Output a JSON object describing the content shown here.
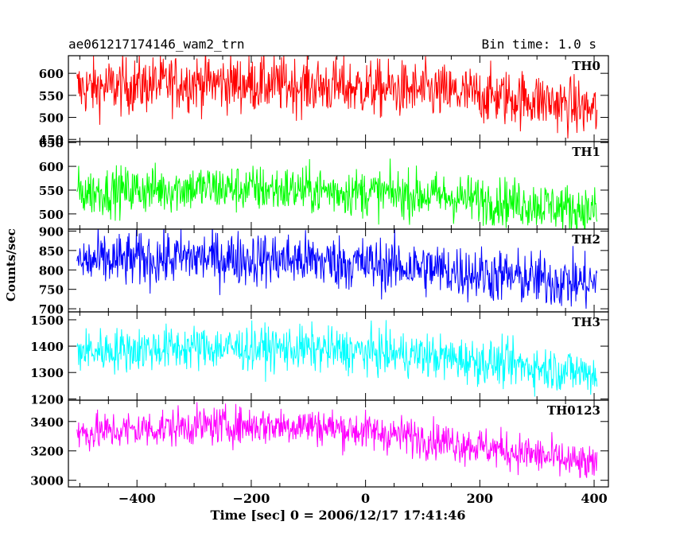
{
  "header": {
    "title": "ae061217174146_wam2_trn",
    "bin_time": "Bin time: 1.0 s"
  },
  "chart_data": {
    "type": "line",
    "ylabel": "Counts/sec",
    "xlabel": "Time [sec] 0 = 2006/12/17 17:41:46",
    "xlim": [
      -520,
      425
    ],
    "x_ticks": [
      -400,
      -200,
      0,
      200,
      400
    ],
    "x_tick_labels": [
      "−400",
      "−200",
      "0",
      "200",
      "400"
    ],
    "x_range_data": [
      -505,
      405
    ],
    "panels": [
      {
        "name": "TH0",
        "color": "#ff0000",
        "ylim": [
          445,
          640
        ],
        "y_ticks": [
          450,
          500,
          550,
          600
        ],
        "y_tick_labels": [
          "450",
          "500",
          "550",
          "600"
        ],
        "trend": [
          [
            -505,
            565
          ],
          [
            -300,
            580
          ],
          [
            -100,
            572
          ],
          [
            100,
            560
          ],
          [
            300,
            540
          ],
          [
            405,
            515
          ]
        ],
        "noise": 32
      },
      {
        "name": "TH1",
        "color": "#00ff00",
        "ylim": [
          468,
          652
        ],
        "y_ticks": [
          500,
          550,
          600,
          650
        ],
        "y_tick_labels": [
          "500",
          "550",
          "600",
          "650"
        ],
        "trend": [
          [
            -505,
            545
          ],
          [
            -300,
            555
          ],
          [
            -100,
            550
          ],
          [
            100,
            540
          ],
          [
            300,
            520
          ],
          [
            405,
            505
          ]
        ],
        "noise": 25
      },
      {
        "name": "TH2",
        "color": "#0000ff",
        "ylim": [
          692,
          905
        ],
        "y_ticks": [
          700,
          750,
          800,
          850,
          900
        ],
        "y_tick_labels": [
          "700",
          "750",
          "800",
          "850",
          "900"
        ],
        "trend": [
          [
            -505,
            820
          ],
          [
            -300,
            832
          ],
          [
            -100,
            825
          ],
          [
            100,
            805
          ],
          [
            300,
            775
          ],
          [
            405,
            765
          ]
        ],
        "noise": 35
      },
      {
        "name": "TH3",
        "color": "#00ffff",
        "ylim": [
          1195,
          1530
        ],
        "y_ticks": [
          1200,
          1300,
          1400,
          1500
        ],
        "y_tick_labels": [
          "1200",
          "1300",
          "1400",
          "1500"
        ],
        "trend": [
          [
            -505,
            1380
          ],
          [
            -300,
            1395
          ],
          [
            -100,
            1390
          ],
          [
            100,
            1365
          ],
          [
            300,
            1320
          ],
          [
            405,
            1295
          ]
        ],
        "noise": 42
      },
      {
        "name": "TH0123",
        "color": "#ff00ff",
        "ylim": [
          2955,
          3545
        ],
        "y_ticks": [
          3000,
          3200,
          3400
        ],
        "y_tick_labels": [
          "3000",
          "3200",
          "3400"
        ],
        "trend": [
          [
            -505,
            3320
          ],
          [
            -300,
            3370
          ],
          [
            -100,
            3375
          ],
          [
            100,
            3290
          ],
          [
            300,
            3170
          ],
          [
            405,
            3090
          ]
        ],
        "noise": 65
      }
    ]
  }
}
